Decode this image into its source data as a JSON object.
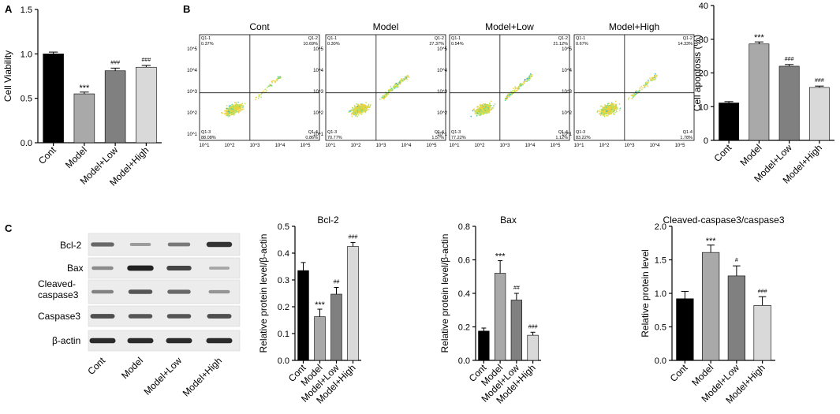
{
  "panel_labels": {
    "a": "A",
    "b": "B",
    "c": "C"
  },
  "colors": {
    "Cont": "#000000",
    "Model": "#a9a9a9",
    "Model+Low": "#808080",
    "Model+High": "#d9d9d9",
    "axis": "#000000",
    "quad_line": "#111111"
  },
  "flow": {
    "titles": [
      "Cont",
      "Model",
      "Model+Low",
      "Model+High"
    ],
    "y_ticks": [
      "10^5",
      "10^4",
      "10^3",
      "10^2",
      "10^1"
    ],
    "x_ticks": [
      "10^1",
      "10^2",
      "10^3",
      "10^4",
      "10^5"
    ],
    "quadrant_labels": [
      "Q1-1",
      "Q1-2",
      "Q1-3",
      "Q1-4"
    ],
    "panels": [
      {
        "q1": "0.37%",
        "q2": "10.69%",
        "q3": "88.08%",
        "q4": "0.86%"
      },
      {
        "q1": "0.30%",
        "q2": "27.37%",
        "q3": "70.77%",
        "q4": "1.57%"
      },
      {
        "q1": "0.54%",
        "q2": "21.12%",
        "q3": "77.22%",
        "q4": "1.12%"
      },
      {
        "q1": "0.67%",
        "q2": "14.33%",
        "q3": "83.22%",
        "q4": "1.78%"
      }
    ]
  },
  "blot": {
    "labels": [
      "Bcl-2",
      "Bax",
      "Cleaved-caspase3",
      "Caspase3",
      "β-actin"
    ],
    "columns": [
      "Cont",
      "Model",
      "Model+Low",
      "Model+High"
    ],
    "band_intensity": [
      [
        0.55,
        0.25,
        0.45,
        0.85
      ],
      [
        0.35,
        0.95,
        0.75,
        0.2
      ],
      [
        0.4,
        0.65,
        0.55,
        0.3
      ],
      [
        0.7,
        0.65,
        0.65,
        0.7
      ],
      [
        0.9,
        0.9,
        0.9,
        0.9
      ]
    ]
  },
  "chart_data": [
    {
      "type": "bar",
      "title": "",
      "xlabel": "",
      "ylabel": "Cell Viability",
      "categories": [
        "Cont",
        "Model",
        "Model+Low",
        "Model+High"
      ],
      "values": [
        1.0,
        0.55,
        0.81,
        0.85
      ],
      "errors": [
        0.02,
        0.02,
        0.03,
        0.02
      ],
      "annotations": [
        "",
        "***",
        "###",
        "###"
      ],
      "ylim": [
        0,
        1.5
      ],
      "yticks": [
        0.0,
        0.5,
        1.0,
        1.5
      ],
      "ytick_labels": [
        "0.0",
        "0.5",
        "1.0",
        "1.5"
      ]
    },
    {
      "type": "bar",
      "title": "",
      "xlabel": "",
      "ylabel": "Cell apoptosis (%)",
      "categories": [
        "Cont",
        "Model",
        "Model+Low",
        "Model+High"
      ],
      "values": [
        11.1,
        28.6,
        22.0,
        15.7
      ],
      "errors": [
        0.4,
        0.6,
        0.5,
        0.4
      ],
      "annotations": [
        "",
        "***",
        "###",
        "###"
      ],
      "ylim": [
        0,
        40
      ],
      "yticks": [
        0,
        10,
        20,
        30,
        40
      ],
      "ytick_labels": [
        "0",
        "10",
        "20",
        "30",
        "40"
      ]
    },
    {
      "type": "bar",
      "title": "Bcl-2",
      "xlabel": "",
      "ylabel": "Relative protein level/β-actin",
      "categories": [
        "Cont",
        "Model",
        "Model+Low",
        "Model+High"
      ],
      "values": [
        0.335,
        0.163,
        0.247,
        0.425
      ],
      "errors": [
        0.03,
        0.028,
        0.025,
        0.015
      ],
      "annotations": [
        "",
        "***",
        "##",
        "###"
      ],
      "ylim": [
        0,
        0.5
      ],
      "yticks": [
        0.0,
        0.1,
        0.2,
        0.3,
        0.4,
        0.5
      ],
      "ytick_labels": [
        "0.0",
        "0.1",
        "0.2",
        "0.3",
        "0.4",
        "0.5"
      ]
    },
    {
      "type": "bar",
      "title": "Bax",
      "xlabel": "",
      "ylabel": "Relative protein level/β-actin",
      "categories": [
        "Cont",
        "Model",
        "Model+Low",
        "Model+High"
      ],
      "values": [
        0.175,
        0.52,
        0.36,
        0.15
      ],
      "errors": [
        0.018,
        0.075,
        0.04,
        0.018
      ],
      "annotations": [
        "",
        "***",
        "##",
        "###"
      ],
      "ylim": [
        0,
        0.8
      ],
      "yticks": [
        0.0,
        0.2,
        0.4,
        0.6,
        0.8
      ],
      "ytick_labels": [
        "0.0",
        "0.2",
        "0.4",
        "0.6",
        "0.8"
      ]
    },
    {
      "type": "bar",
      "title": "Cleaved-caspase3/caspase3",
      "xlabel": "",
      "ylabel": "Relative protein level",
      "categories": [
        "Cont",
        "Model",
        "Model+Low",
        "Model+High"
      ],
      "values": [
        0.92,
        1.61,
        1.26,
        0.82
      ],
      "errors": [
        0.11,
        0.11,
        0.15,
        0.13
      ],
      "annotations": [
        "",
        "***",
        "#",
        "###"
      ],
      "ylim": [
        0,
        2.0
      ],
      "yticks": [
        0.0,
        0.5,
        1.0,
        1.5,
        2.0
      ],
      "ytick_labels": [
        "0.0",
        "0.5",
        "1.0",
        "1.5",
        "2.0"
      ]
    }
  ]
}
